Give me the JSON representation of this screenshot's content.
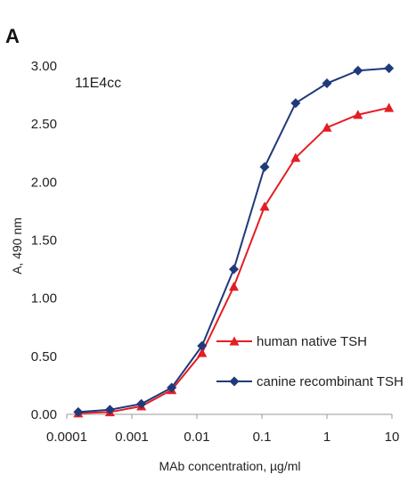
{
  "panel_label": "A",
  "chart_data": {
    "type": "line",
    "annotation": "11E4cc",
    "xlabel": "MAb concentration, µg/ml",
    "ylabel": "A, 490 nm",
    "xscale": "log",
    "xlim": [
      0.0001,
      10
    ],
    "ylim": [
      0,
      3
    ],
    "x_ticks": [
      "0.0001",
      "0.001",
      "0.01",
      "0.1",
      "1",
      "10"
    ],
    "y_ticks": [
      "0.00",
      "0.50",
      "1.00",
      "1.50",
      "2.00",
      "2.50",
      "3.00"
    ],
    "grid": false,
    "legend_position": "bottom-right",
    "x": [
      0.00015,
      0.00046,
      0.0014,
      0.0041,
      0.012,
      0.037,
      0.11,
      0.33,
      1.0,
      3.0,
      9.0
    ],
    "series": [
      {
        "name": "human native TSH",
        "color": "#e31e24",
        "marker": "triangle",
        "values": [
          0.01,
          0.02,
          0.07,
          0.21,
          0.53,
          1.1,
          1.79,
          2.21,
          2.47,
          2.58,
          2.64
        ]
      },
      {
        "name": "canine recombinant TSH",
        "color": "#1f3a7a",
        "marker": "diamond",
        "values": [
          0.02,
          0.04,
          0.09,
          0.23,
          0.59,
          1.25,
          2.13,
          2.68,
          2.85,
          2.96,
          2.98
        ]
      }
    ]
  }
}
